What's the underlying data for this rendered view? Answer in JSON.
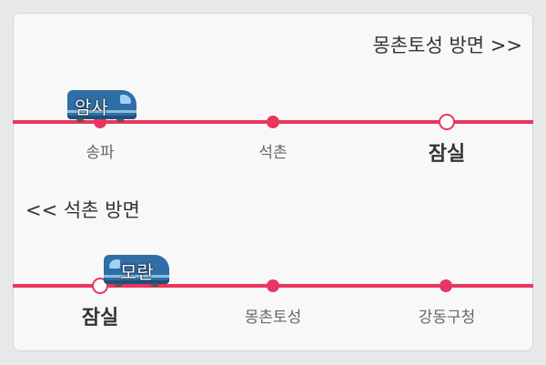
{
  "upper": {
    "direction_label": "몽촌토성 방면 >>",
    "train_label": "암사",
    "stations": [
      "송파",
      "석촌",
      "잠실"
    ],
    "current_station": "잠실"
  },
  "lower": {
    "direction_label": "<< 석촌 방면",
    "train_label": "모란",
    "stations": [
      "잠실",
      "몽촌토성",
      "강동구청"
    ],
    "current_station": "잠실"
  },
  "colors": {
    "line": "#e8365f",
    "train_body": "#2f6ea6",
    "card_background": "#f8f8f8"
  }
}
